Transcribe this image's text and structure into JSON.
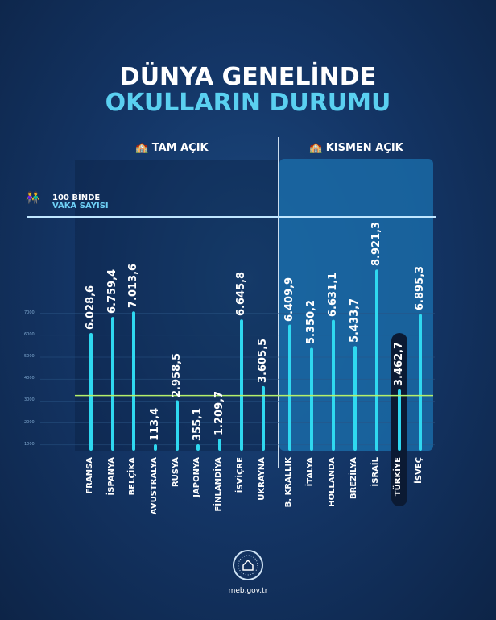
{
  "title_line1": "DÜNYA GENELİNDE",
  "title_line2": "OKULLARIN DURUMU",
  "sections": {
    "open": "TAM AÇIK",
    "partial": "KISMEN AÇIK"
  },
  "legend": {
    "line1": "100 BİNDE",
    "line2": "VAKA SAYISI"
  },
  "footer": "meb.gov.tr",
  "colors": {
    "bar": "#2fd8f0",
    "highlight_line": "#b6f06a",
    "partial_panel": "#1a6aa6"
  },
  "chart_data": {
    "type": "bar",
    "yticks": [
      "7000",
      "6000",
      "5000",
      "4000",
      "3000",
      "2000",
      "1000"
    ],
    "ylim": [
      0,
      9000
    ],
    "reference_line": 3250,
    "categories": [
      "FRANSA",
      "İSPANYA",
      "BELÇİKA",
      "AVUSTRALYA",
      "RUSYA",
      "JAPONYA",
      "FİNLANDİYA",
      "İSVİÇRE",
      "UKRAYNA",
      "B. KRALLIK",
      "İTALYA",
      "HOLLANDA",
      "BREZİLYA",
      "İSRAİL",
      "TÜRKİYE",
      "İSVEÇ"
    ],
    "values": [
      6028.6,
      6759.4,
      7013.6,
      113.4,
      2958.5,
      355.1,
      1209.7,
      6645.8,
      3605.5,
      6409.9,
      5350.2,
      6631.1,
      5433.7,
      8921.3,
      3462.7,
      6895.3
    ],
    "value_labels": [
      "6.028,6",
      "6.759,4",
      "7.013,6",
      "113,4",
      "2.958,5",
      "355,1",
      "1.209,7",
      "6.645,8",
      "3.605,5",
      "6.409,9",
      "5.350,2",
      "6.631,1",
      "5.433,7",
      "8.921,3",
      "3.462,7",
      "6.895,3"
    ],
    "groups": [
      "TAM AÇIK",
      "TAM AÇIK",
      "TAM AÇIK",
      "TAM AÇIK",
      "TAM AÇIK",
      "TAM AÇIK",
      "TAM AÇIK",
      "TAM AÇIK",
      "TAM AÇIK",
      "KISMEN AÇIK",
      "KISMEN AÇIK",
      "KISMEN AÇIK",
      "KISMEN AÇIK",
      "KISMEN AÇIK",
      "KISMEN AÇIK",
      "KISMEN AÇIK"
    ],
    "highlight": "TÜRKİYE"
  }
}
